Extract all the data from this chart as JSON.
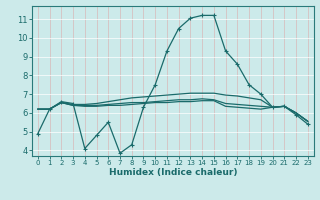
{
  "xlabel": "Humidex (Indice chaleur)",
  "bg_color": "#cceaea",
  "grid_color": "#aad4d4",
  "line_color": "#1a6b6b",
  "spine_color": "#2a7a7a",
  "xlim": [
    -0.5,
    23.5
  ],
  "ylim": [
    3.7,
    11.7
  ],
  "yticks": [
    4,
    5,
    6,
    7,
    8,
    9,
    10,
    11
  ],
  "xticks": [
    0,
    1,
    2,
    3,
    4,
    5,
    6,
    7,
    8,
    9,
    10,
    11,
    12,
    13,
    14,
    15,
    16,
    17,
    18,
    19,
    20,
    21,
    22,
    23
  ],
  "series": [
    [
      4.9,
      6.2,
      6.6,
      6.5,
      4.1,
      4.8,
      5.5,
      3.85,
      4.3,
      6.3,
      7.5,
      9.3,
      10.5,
      11.05,
      11.2,
      11.2,
      9.3,
      8.6,
      7.5,
      7.0,
      6.3,
      6.35,
      5.9,
      5.4
    ],
    [
      6.2,
      6.2,
      6.55,
      6.4,
      6.35,
      6.35,
      6.4,
      6.4,
      6.45,
      6.5,
      6.55,
      6.55,
      6.6,
      6.6,
      6.65,
      6.65,
      6.35,
      6.3,
      6.25,
      6.2,
      6.3,
      6.35,
      6.0,
      5.55
    ],
    [
      6.2,
      6.2,
      6.55,
      6.4,
      6.4,
      6.4,
      6.45,
      6.5,
      6.55,
      6.55,
      6.6,
      6.65,
      6.7,
      6.7,
      6.75,
      6.7,
      6.5,
      6.45,
      6.4,
      6.35,
      6.3,
      6.35,
      6.0,
      5.55
    ],
    [
      6.2,
      6.2,
      6.55,
      6.45,
      6.45,
      6.5,
      6.6,
      6.7,
      6.8,
      6.85,
      6.9,
      6.95,
      7.0,
      7.05,
      7.05,
      7.05,
      6.95,
      6.9,
      6.8,
      6.7,
      6.3,
      6.35,
      6.0,
      5.55
    ]
  ]
}
